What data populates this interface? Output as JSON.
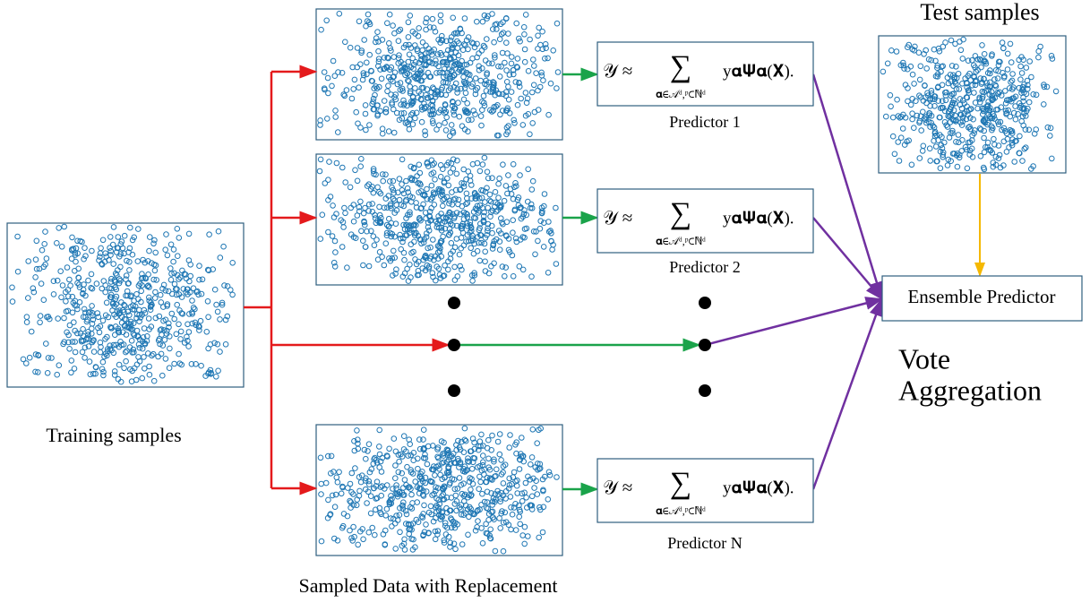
{
  "training": {
    "label": "Training samples"
  },
  "test": {
    "label": "Test samples"
  },
  "resampled": {
    "label": "Sampled Data with Replacement"
  },
  "predictors": [
    {
      "label": "Predictor 1",
      "formula": {
        "lhs": "𝒴 ≈",
        "operator": "∑",
        "index": "𝛂∈𝒜ᵈ,ᵖ⊂ℕᵈ",
        "term": "y𝛂𝚿𝛂(𝐗)."
      }
    },
    {
      "label": "Predictor 2",
      "formula": {
        "lhs": "𝒴 ≈",
        "operator": "∑",
        "index": "𝛂∈𝒜ᵈ,ᵖ⊂ℕᵈ",
        "term": "y𝛂𝚿𝛂(𝐗)."
      }
    },
    {
      "label": "Predictor N",
      "formula": {
        "lhs": "𝒴 ≈",
        "operator": "∑",
        "index": "𝛂∈𝒜ᵈ,ᵖ⊂ℕᵈ",
        "term": "y𝛂𝚿𝛂(𝐗)."
      }
    }
  ],
  "ensemble": {
    "label": "Ensemble Predictor"
  },
  "aggregation": {
    "lines": [
      "Vote",
      "Aggregation"
    ]
  }
}
